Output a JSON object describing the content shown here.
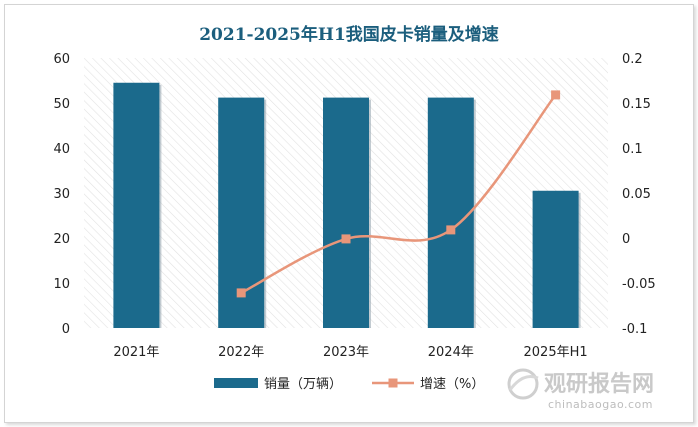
{
  "chart_data": {
    "type": "bar+line",
    "title": "2021-2025年H1我国皮卡销量及增速",
    "categories": [
      "2021年",
      "2022年",
      "2023年",
      "2024年",
      "2025年H1"
    ],
    "series": [
      {
        "name": "销量（万辆）",
        "type": "bar",
        "axis": "left",
        "values": [
          54.5,
          51.2,
          51.2,
          51.2,
          30.5
        ],
        "color": "#1b6a8c"
      },
      {
        "name": "增速（%）",
        "type": "line",
        "axis": "right",
        "values": [
          null,
          -0.061,
          -0.001,
          0.009,
          0.159
        ],
        "color": "#e8967a"
      }
    ],
    "y_left": {
      "min": 0,
      "max": 60,
      "ticks": [
        "0",
        "10",
        "20",
        "30",
        "40",
        "50",
        "60"
      ]
    },
    "y_right": {
      "min": -0.1,
      "max": 0.2,
      "ticks": [
        "-0.1",
        "-0.05",
        "0",
        "0.05",
        "0.1",
        "0.15",
        "0.2"
      ]
    },
    "legend_position": "bottom"
  },
  "watermark": {
    "name": "观研报告网",
    "url": "chinabaogao.com"
  }
}
